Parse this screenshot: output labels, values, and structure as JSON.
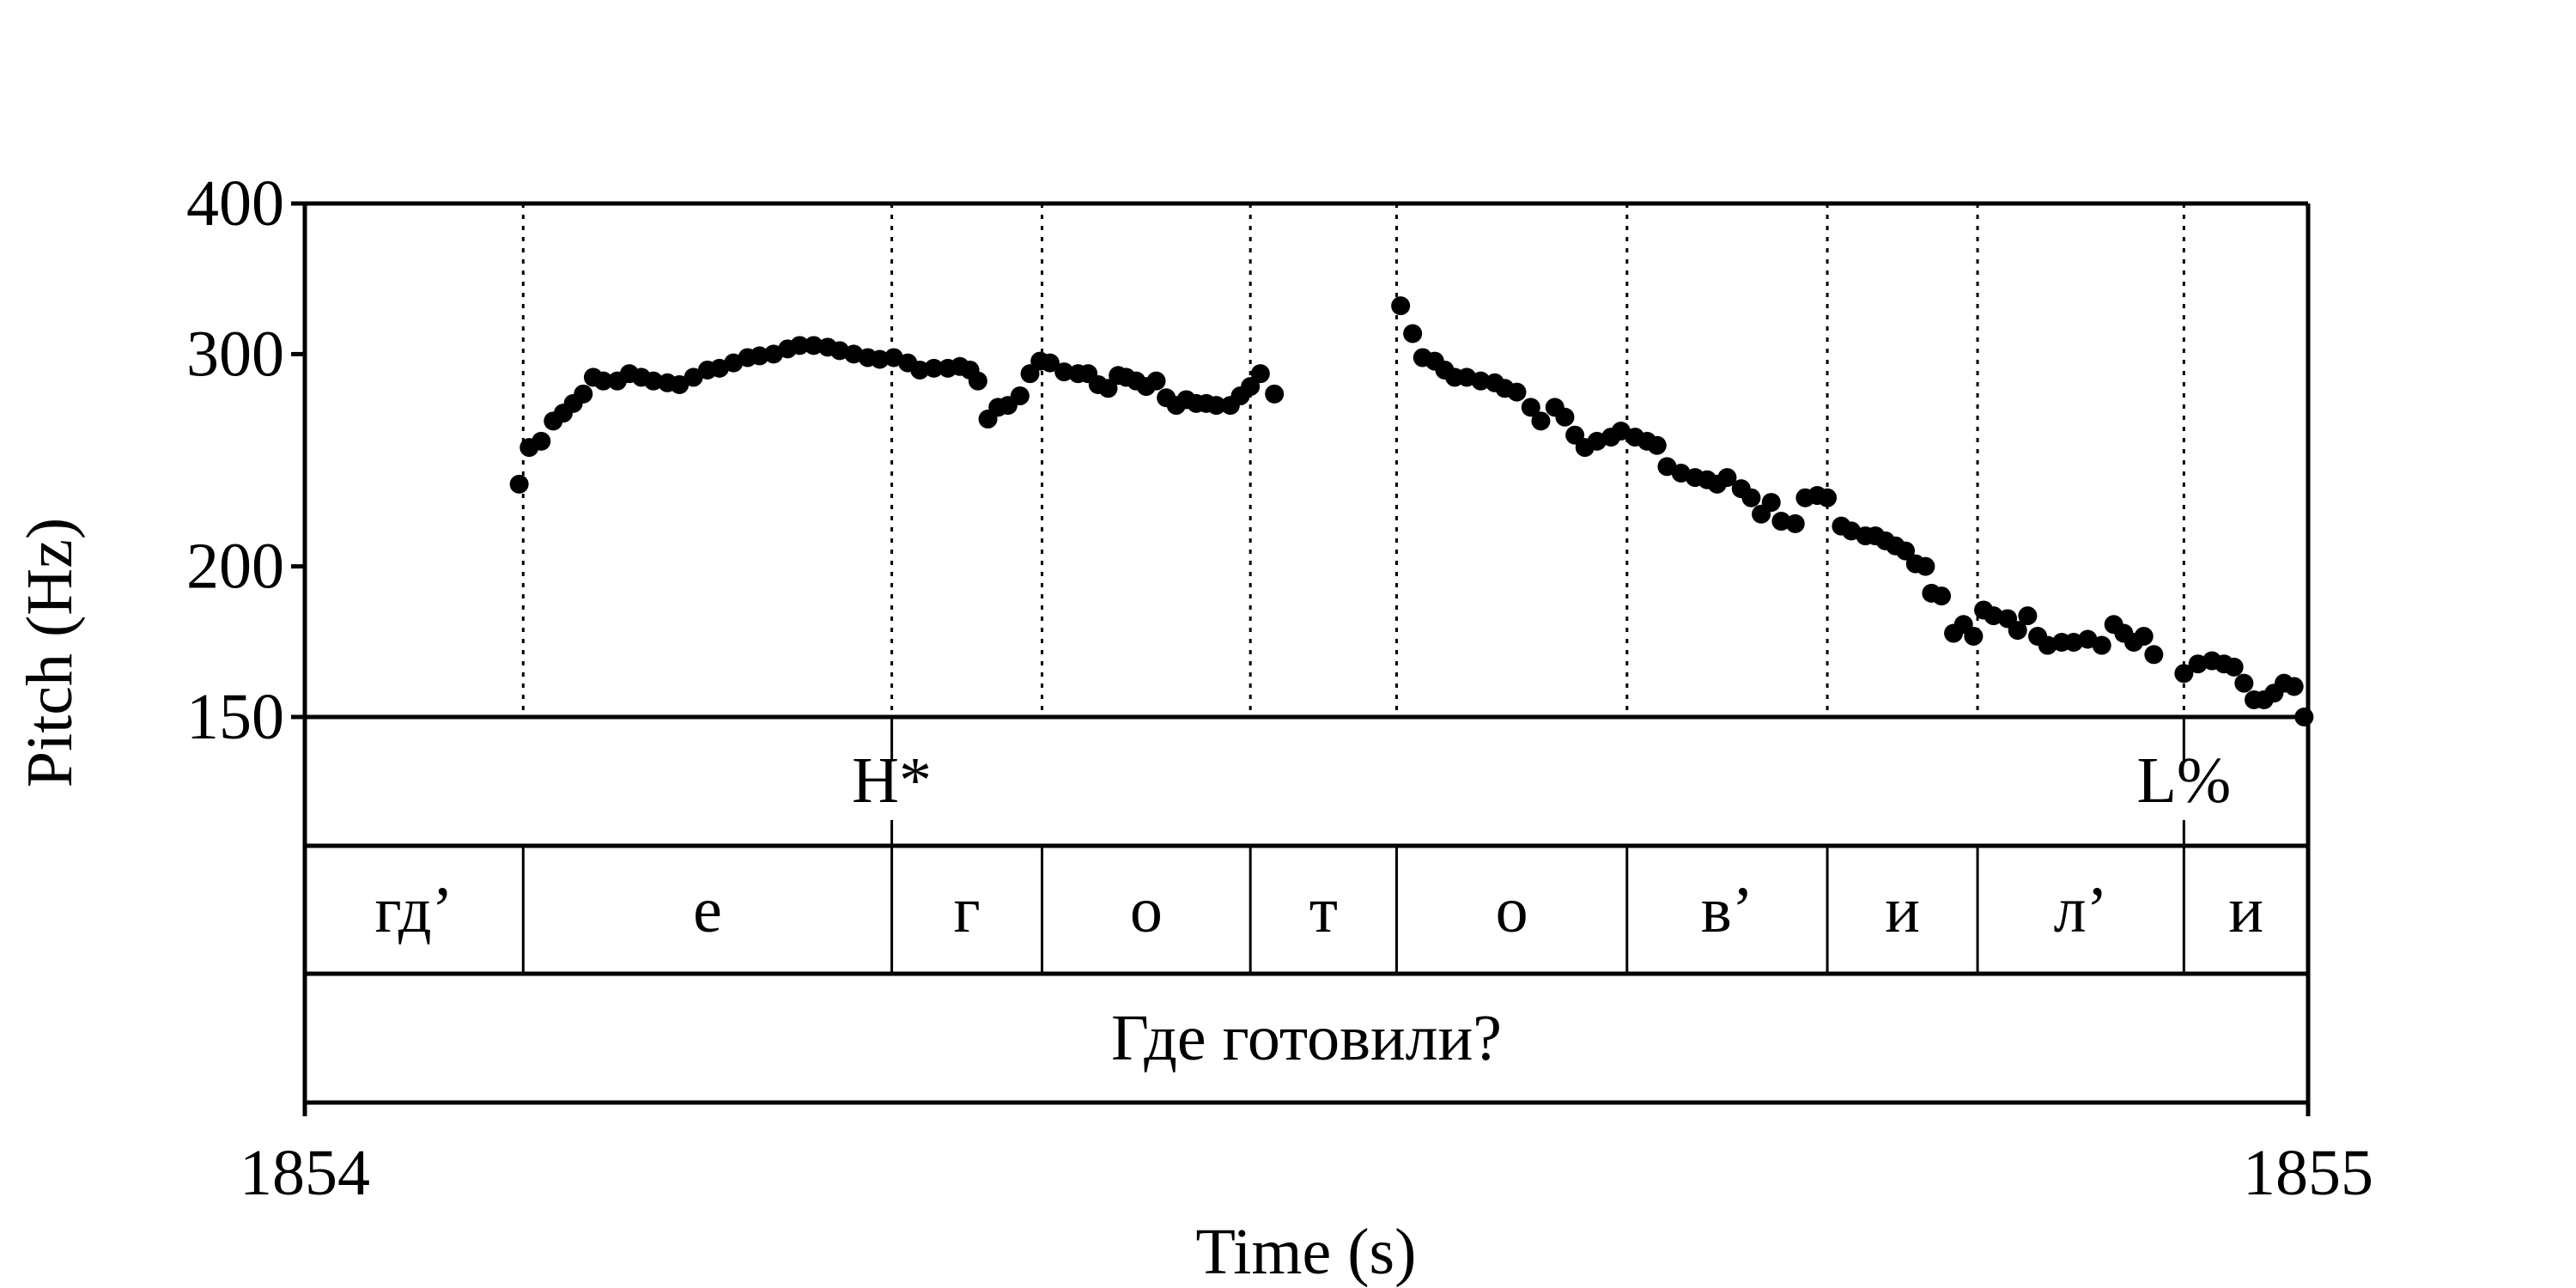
{
  "chart_data": {
    "type": "scatter",
    "y_label": "Pitch (Hz)",
    "x_label": "Time (s)",
    "yscale": "log",
    "ylim": [
      150,
      400
    ],
    "yticks": [
      150,
      200,
      300,
      400
    ],
    "xlim": [
      1854,
      1855
    ],
    "xticks": [
      1854,
      1855
    ],
    "color": "#000000",
    "x": [
      1854.107,
      1854.112,
      1854.118,
      1854.124,
      1854.129,
      1854.134,
      1854.139,
      1854.144,
      1854.149,
      1854.156,
      1854.162,
      1854.168,
      1854.174,
      1854.181,
      1854.187,
      1854.194,
      1854.201,
      1854.207,
      1854.214,
      1854.221,
      1854.227,
      1854.234,
      1854.241,
      1854.247,
      1854.254,
      1854.261,
      1854.267,
      1854.274,
      1854.281,
      1854.287,
      1854.294,
      1854.301,
      1854.307,
      1854.314,
      1854.321,
      1854.327,
      1854.332,
      1854.336,
      1854.341,
      1854.346,
      1854.351,
      1854.357,
      1854.362,
      1854.367,
      1854.372,
      1854.379,
      1854.386,
      1854.391,
      1854.396,
      1854.401,
      1854.406,
      1854.41,
      1854.415,
      1854.42,
      1854.425,
      1854.43,
      1854.435,
      1854.44,
      1854.445,
      1854.45,
      1854.455,
      1854.462,
      1854.467,
      1854.472,
      1854.477,
      1854.484,
      1854.547,
      1854.553,
      1854.558,
      1854.564,
      1854.569,
      1854.574,
      1854.58,
      1854.587,
      1854.594,
      1854.599,
      1854.605,
      1854.612,
      1854.617,
      1854.624,
      1854.629,
      1854.634,
      1854.639,
      1854.645,
      1854.652,
      1854.657,
      1854.664,
      1854.67,
      1854.675,
      1854.68,
      1854.687,
      1854.694,
      1854.7,
      1854.705,
      1854.71,
      1854.717,
      1854.722,
      1854.727,
      1854.732,
      1854.737,
      1854.744,
      1854.749,
      1854.755,
      1854.76,
      1854.767,
      1854.772,
      1854.779,
      1854.784,
      1854.789,
      1854.794,
      1854.799,
      1854.804,
      1854.809,
      1854.812,
      1854.817,
      1854.823,
      1854.828,
      1854.833,
      1854.838,
      1854.843,
      1854.85,
      1854.855,
      1854.86,
      1854.865,
      1854.87,
      1854.877,
      1854.883,
      1854.89,
      1854.897,
      1854.903,
      1854.908,
      1854.913,
      1854.918,
      1854.923,
      1854.938,
      1854.945,
      1854.952,
      1854.958,
      1854.963,
      1854.968,
      1854.973,
      1854.978,
      1854.983,
      1854.988,
      1854.993,
      1854.998
    ],
    "values": [
      234,
      251,
      254,
      264,
      268,
      273,
      278,
      287,
      285,
      285,
      289,
      287,
      285,
      284,
      283,
      287,
      291,
      292,
      295,
      298,
      299,
      300,
      303,
      305,
      305,
      304,
      302,
      300,
      298,
      297,
      298,
      295,
      291,
      292,
      292,
      293,
      291,
      285,
      265,
      271,
      272,
      277,
      289,
      296,
      295,
      290,
      289,
      289,
      283,
      281,
      288,
      287,
      285,
      282,
      285,
      276,
      272,
      275,
      273,
      273,
      272,
      272,
      277,
      282,
      289,
      278,
      329,
      312,
      298,
      296,
      291,
      287,
      287,
      285,
      284,
      281,
      279,
      271,
      264,
      271,
      266,
      257,
      251,
      254,
      256,
      259,
      256,
      254,
      252,
      242,
      239,
      237,
      236,
      234,
      237,
      232,
      228,
      221,
      226,
      218,
      217,
      228,
      229,
      228,
      216,
      214,
      212,
      212,
      210,
      208,
      206,
      201,
      200,
      190,
      189,
      176,
      179,
      175,
      184,
      182,
      181,
      177,
      182,
      175,
      172,
      173,
      173,
      174,
      172,
      179,
      176,
      173,
      175,
      169,
      163,
      166,
      167,
      166,
      165,
      160,
      155,
      155,
      157,
      160,
      159,
      150
    ],
    "boundaries": [
      1854.109,
      1854.293,
      1854.368,
      1854.472,
      1854.545,
      1854.66,
      1854.76,
      1854.835,
      1854.938
    ],
    "tone_tier": [
      {
        "x": 1854.293,
        "label": "H*"
      },
      {
        "x": 1854.938,
        "label": "L%"
      }
    ],
    "segments": [
      "гд’",
      "е",
      "г",
      "о",
      "т",
      "о",
      "в’",
      "и",
      "л’",
      "и"
    ],
    "word": "Где готовили?"
  }
}
